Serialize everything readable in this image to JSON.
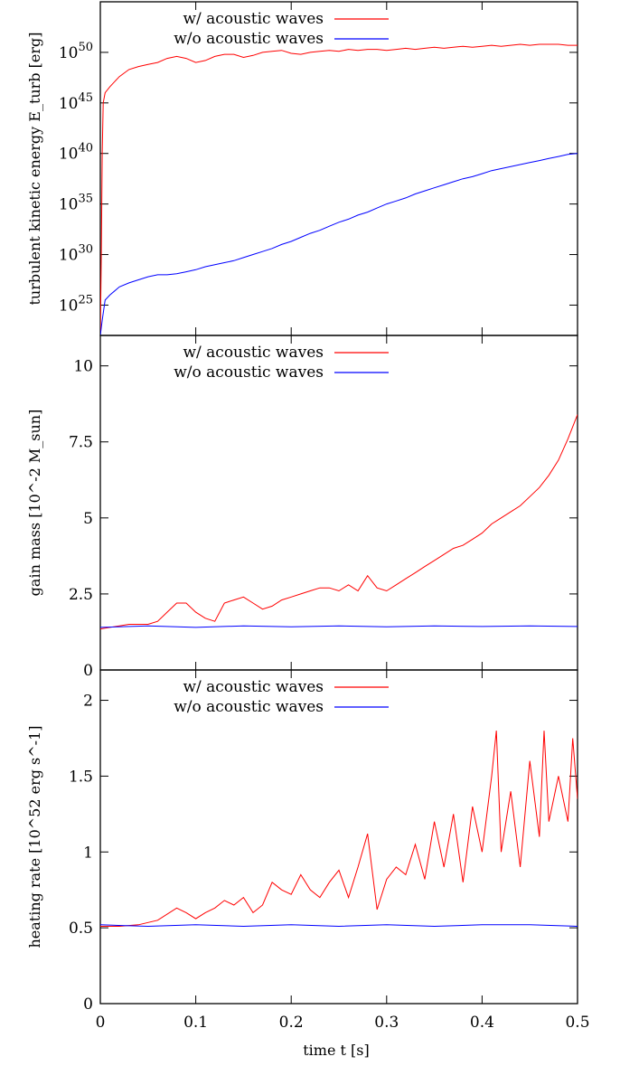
{
  "figure": {
    "xlabel": "time t [s]",
    "xlim": [
      0,
      0.5
    ],
    "xticks": [
      0,
      0.1,
      0.2,
      0.3,
      0.4,
      0.5
    ],
    "xtick_labels": [
      "0",
      "0.1",
      "0.2",
      "0.3",
      "0.4",
      "0.5"
    ]
  },
  "chart_data": [
    {
      "type": "line",
      "ylabel": "turbulent kinetic energy E_turb [erg]",
      "yscale": "log",
      "ylim": [
        1e+22,
        1e+55
      ],
      "yticks": [
        1e+25,
        1e+30,
        1e+35,
        1e+40,
        1e+45,
        1e+50
      ],
      "ytick_labels": [
        {
          "base": "10",
          "exp": "25"
        },
        {
          "base": "10",
          "exp": "30"
        },
        {
          "base": "10",
          "exp": "35"
        },
        {
          "base": "10",
          "exp": "40"
        },
        {
          "base": "10",
          "exp": "45"
        },
        {
          "base": "10",
          "exp": "50"
        }
      ],
      "legend": "top-center",
      "series": [
        {
          "name": "w/   acoustic waves",
          "color": "#ff0000",
          "log10_values": [
            [
              0.0,
              22.0
            ],
            [
              0.001,
              30.0
            ],
            [
              0.002,
              40.0
            ],
            [
              0.003,
              45.0
            ],
            [
              0.005,
              46.0
            ],
            [
              0.01,
              46.6
            ],
            [
              0.02,
              47.6
            ],
            [
              0.03,
              48.3
            ],
            [
              0.04,
              48.6
            ],
            [
              0.05,
              48.8
            ],
            [
              0.06,
              49.0
            ],
            [
              0.07,
              49.4
            ],
            [
              0.08,
              49.6
            ],
            [
              0.09,
              49.4
            ],
            [
              0.1,
              49.0
            ],
            [
              0.11,
              49.2
            ],
            [
              0.12,
              49.6
            ],
            [
              0.13,
              49.8
            ],
            [
              0.14,
              49.8
            ],
            [
              0.15,
              49.5
            ],
            [
              0.16,
              49.7
            ],
            [
              0.17,
              50.0
            ],
            [
              0.18,
              50.1
            ],
            [
              0.19,
              50.2
            ],
            [
              0.2,
              49.9
            ],
            [
              0.21,
              49.8
            ],
            [
              0.22,
              50.0
            ],
            [
              0.23,
              50.1
            ],
            [
              0.24,
              50.2
            ],
            [
              0.25,
              50.1
            ],
            [
              0.26,
              50.3
            ],
            [
              0.27,
              50.2
            ],
            [
              0.28,
              50.3
            ],
            [
              0.29,
              50.3
            ],
            [
              0.3,
              50.2
            ],
            [
              0.31,
              50.3
            ],
            [
              0.32,
              50.4
            ],
            [
              0.33,
              50.3
            ],
            [
              0.34,
              50.4
            ],
            [
              0.35,
              50.5
            ],
            [
              0.36,
              50.4
            ],
            [
              0.37,
              50.5
            ],
            [
              0.38,
              50.6
            ],
            [
              0.39,
              50.5
            ],
            [
              0.4,
              50.6
            ],
            [
              0.41,
              50.7
            ],
            [
              0.42,
              50.6
            ],
            [
              0.43,
              50.7
            ],
            [
              0.44,
              50.8
            ],
            [
              0.45,
              50.7
            ],
            [
              0.46,
              50.8
            ],
            [
              0.47,
              50.8
            ],
            [
              0.48,
              50.8
            ],
            [
              0.49,
              50.7
            ],
            [
              0.5,
              50.7
            ]
          ]
        },
        {
          "name": "w/o acoustic waves",
          "color": "#0000ff",
          "log10_values": [
            [
              0.0,
              22.0
            ],
            [
              0.002,
              23.5
            ],
            [
              0.005,
              25.5
            ],
            [
              0.01,
              26.0
            ],
            [
              0.02,
              26.8
            ],
            [
              0.03,
              27.2
            ],
            [
              0.04,
              27.5
            ],
            [
              0.05,
              27.8
            ],
            [
              0.06,
              28.0
            ],
            [
              0.07,
              28.0
            ],
            [
              0.08,
              28.1
            ],
            [
              0.09,
              28.3
            ],
            [
              0.1,
              28.5
            ],
            [
              0.11,
              28.8
            ],
            [
              0.12,
              29.0
            ],
            [
              0.13,
              29.2
            ],
            [
              0.14,
              29.4
            ],
            [
              0.15,
              29.7
            ],
            [
              0.16,
              30.0
            ],
            [
              0.17,
              30.3
            ],
            [
              0.18,
              30.6
            ],
            [
              0.19,
              31.0
            ],
            [
              0.2,
              31.3
            ],
            [
              0.21,
              31.7
            ],
            [
              0.22,
              32.1
            ],
            [
              0.23,
              32.4
            ],
            [
              0.24,
              32.8
            ],
            [
              0.25,
              33.2
            ],
            [
              0.26,
              33.5
            ],
            [
              0.27,
              33.9
            ],
            [
              0.28,
              34.2
            ],
            [
              0.29,
              34.6
            ],
            [
              0.3,
              35.0
            ],
            [
              0.31,
              35.3
            ],
            [
              0.32,
              35.6
            ],
            [
              0.33,
              36.0
            ],
            [
              0.34,
              36.3
            ],
            [
              0.35,
              36.6
            ],
            [
              0.36,
              36.9
            ],
            [
              0.37,
              37.2
            ],
            [
              0.38,
              37.5
            ],
            [
              0.39,
              37.7
            ],
            [
              0.4,
              38.0
            ],
            [
              0.41,
              38.3
            ],
            [
              0.42,
              38.5
            ],
            [
              0.43,
              38.7
            ],
            [
              0.44,
              38.9
            ],
            [
              0.45,
              39.1
            ],
            [
              0.46,
              39.3
            ],
            [
              0.47,
              39.5
            ],
            [
              0.48,
              39.7
            ],
            [
              0.49,
              39.9
            ],
            [
              0.5,
              40.0
            ]
          ]
        }
      ]
    },
    {
      "type": "line",
      "ylabel": "gain mass [10^-2 M_sun]",
      "ylim": [
        0,
        11
      ],
      "yticks": [
        0,
        2.5,
        5,
        7.5,
        10
      ],
      "ytick_labels": [
        "0",
        "2.5",
        "5",
        "7.5",
        "10"
      ],
      "legend": "top-center",
      "series": [
        {
          "name": "w/   acoustic waves",
          "color": "#ff0000",
          "values": [
            [
              0.0,
              1.35
            ],
            [
              0.01,
              1.4
            ],
            [
              0.02,
              1.45
            ],
            [
              0.03,
              1.5
            ],
            [
              0.04,
              1.5
            ],
            [
              0.05,
              1.5
            ],
            [
              0.06,
              1.6
            ],
            [
              0.07,
              1.9
            ],
            [
              0.08,
              2.2
            ],
            [
              0.09,
              2.2
            ],
            [
              0.1,
              1.9
            ],
            [
              0.11,
              1.7
            ],
            [
              0.12,
              1.6
            ],
            [
              0.13,
              2.2
            ],
            [
              0.14,
              2.3
            ],
            [
              0.15,
              2.4
            ],
            [
              0.16,
              2.2
            ],
            [
              0.17,
              2.0
            ],
            [
              0.18,
              2.1
            ],
            [
              0.19,
              2.3
            ],
            [
              0.2,
              2.4
            ],
            [
              0.21,
              2.5
            ],
            [
              0.22,
              2.6
            ],
            [
              0.23,
              2.7
            ],
            [
              0.24,
              2.7
            ],
            [
              0.25,
              2.6
            ],
            [
              0.26,
              2.8
            ],
            [
              0.27,
              2.6
            ],
            [
              0.28,
              3.1
            ],
            [
              0.29,
              2.7
            ],
            [
              0.3,
              2.6
            ],
            [
              0.31,
              2.8
            ],
            [
              0.32,
              3.0
            ],
            [
              0.33,
              3.2
            ],
            [
              0.34,
              3.4
            ],
            [
              0.35,
              3.6
            ],
            [
              0.36,
              3.8
            ],
            [
              0.37,
              4.0
            ],
            [
              0.38,
              4.1
            ],
            [
              0.39,
              4.3
            ],
            [
              0.4,
              4.5
            ],
            [
              0.41,
              4.8
            ],
            [
              0.42,
              5.0
            ],
            [
              0.43,
              5.2
            ],
            [
              0.44,
              5.4
            ],
            [
              0.45,
              5.7
            ],
            [
              0.46,
              6.0
            ],
            [
              0.47,
              6.4
            ],
            [
              0.48,
              6.9
            ],
            [
              0.49,
              7.6
            ],
            [
              0.5,
              8.4
            ]
          ]
        },
        {
          "name": "w/o acoustic waves",
          "color": "#0000ff",
          "values": [
            [
              0.0,
              1.4
            ],
            [
              0.05,
              1.45
            ],
            [
              0.1,
              1.4
            ],
            [
              0.15,
              1.45
            ],
            [
              0.2,
              1.42
            ],
            [
              0.25,
              1.45
            ],
            [
              0.3,
              1.42
            ],
            [
              0.35,
              1.45
            ],
            [
              0.4,
              1.43
            ],
            [
              0.45,
              1.45
            ],
            [
              0.5,
              1.43
            ]
          ]
        }
      ]
    },
    {
      "type": "line",
      "ylabel": "heating rate [10^52 erg s^-1]",
      "ylim": [
        0,
        2.2
      ],
      "yticks": [
        0,
        0.5,
        1,
        1.5,
        2
      ],
      "ytick_labels": [
        "0",
        "0.5",
        "1",
        "1.5",
        "2"
      ],
      "legend": "top-center",
      "series": [
        {
          "name": "w/   acoustic waves",
          "color": "#ff0000",
          "values": [
            [
              0.0,
              0.51
            ],
            [
              0.02,
              0.51
            ],
            [
              0.04,
              0.52
            ],
            [
              0.06,
              0.55
            ],
            [
              0.08,
              0.63
            ],
            [
              0.09,
              0.6
            ],
            [
              0.1,
              0.56
            ],
            [
              0.11,
              0.6
            ],
            [
              0.12,
              0.63
            ],
            [
              0.13,
              0.68
            ],
            [
              0.14,
              0.65
            ],
            [
              0.15,
              0.7
            ],
            [
              0.16,
              0.6
            ],
            [
              0.17,
              0.65
            ],
            [
              0.18,
              0.8
            ],
            [
              0.19,
              0.75
            ],
            [
              0.2,
              0.72
            ],
            [
              0.21,
              0.85
            ],
            [
              0.22,
              0.75
            ],
            [
              0.23,
              0.7
            ],
            [
              0.24,
              0.8
            ],
            [
              0.25,
              0.88
            ],
            [
              0.26,
              0.7
            ],
            [
              0.27,
              0.9
            ],
            [
              0.28,
              1.12
            ],
            [
              0.29,
              0.62
            ],
            [
              0.3,
              0.82
            ],
            [
              0.31,
              0.9
            ],
            [
              0.32,
              0.85
            ],
            [
              0.33,
              1.05
            ],
            [
              0.34,
              0.82
            ],
            [
              0.35,
              1.2
            ],
            [
              0.36,
              0.9
            ],
            [
              0.37,
              1.25
            ],
            [
              0.38,
              0.8
            ],
            [
              0.39,
              1.3
            ],
            [
              0.4,
              1.0
            ],
            [
              0.41,
              1.5
            ],
            [
              0.415,
              1.8
            ],
            [
              0.42,
              1.0
            ],
            [
              0.43,
              1.4
            ],
            [
              0.44,
              0.9
            ],
            [
              0.45,
              1.6
            ],
            [
              0.46,
              1.1
            ],
            [
              0.465,
              1.8
            ],
            [
              0.47,
              1.2
            ],
            [
              0.48,
              1.5
            ],
            [
              0.49,
              1.2
            ],
            [
              0.495,
              1.75
            ],
            [
              0.5,
              1.35
            ]
          ]
        },
        {
          "name": "w/o acoustic waves",
          "color": "#0000ff",
          "values": [
            [
              0.0,
              0.52
            ],
            [
              0.05,
              0.51
            ],
            [
              0.1,
              0.52
            ],
            [
              0.15,
              0.51
            ],
            [
              0.2,
              0.52
            ],
            [
              0.25,
              0.51
            ],
            [
              0.3,
              0.52
            ],
            [
              0.35,
              0.51
            ],
            [
              0.4,
              0.52
            ],
            [
              0.45,
              0.52
            ],
            [
              0.5,
              0.51
            ]
          ]
        }
      ]
    }
  ]
}
